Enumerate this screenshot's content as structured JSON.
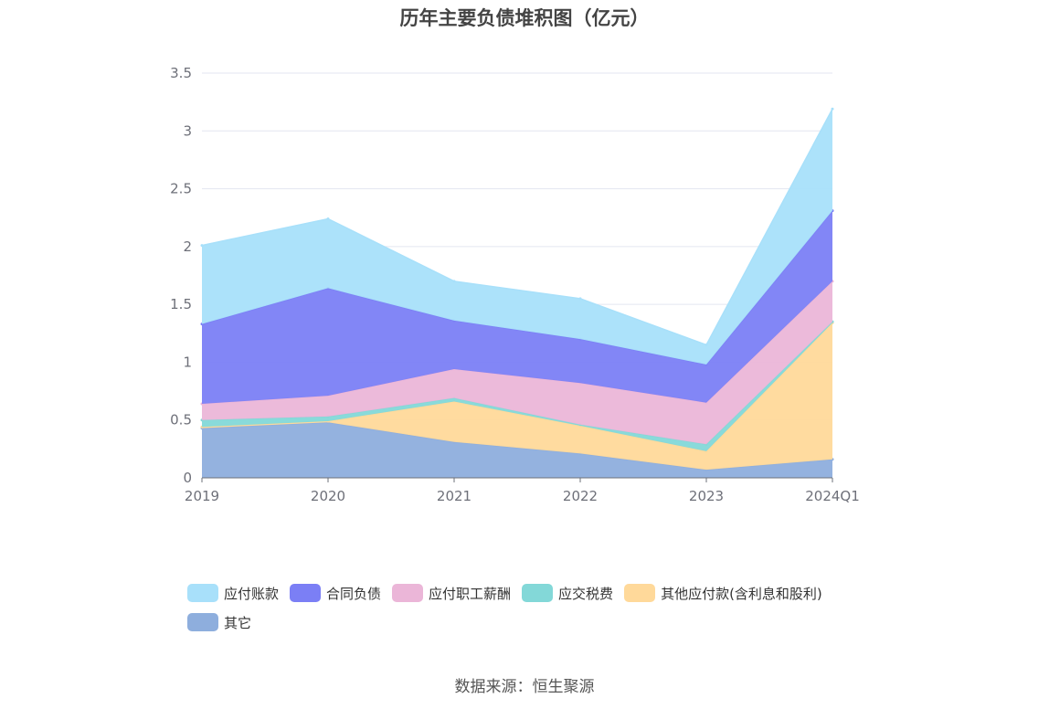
{
  "chart_data": {
    "type": "area",
    "title": "历年主要负债堆积图（亿元）",
    "stacked": true,
    "categories": [
      "2019",
      "2020",
      "2021",
      "2022",
      "2023",
      "2024Q1"
    ],
    "ylim": [
      0,
      3.5
    ],
    "yticks": [
      "0",
      "0.5",
      "1",
      "1.5",
      "2",
      "2.5",
      "3",
      "3.5"
    ],
    "grid": true,
    "legend_position": "bottom",
    "series": [
      {
        "name": "其它",
        "color": "#8eaedd",
        "values": [
          0.43,
          0.48,
          0.31,
          0.21,
          0.07,
          0.16
        ]
      },
      {
        "name": "其他应付款(含利息和股利)",
        "color": "#ffd99a",
        "values": [
          0.01,
          0.01,
          0.35,
          0.24,
          0.16,
          1.18
        ]
      },
      {
        "name": "应交税费",
        "color": "#83d8d8",
        "values": [
          0.06,
          0.04,
          0.03,
          0.01,
          0.06,
          0.01
        ]
      },
      {
        "name": "应付职工薪酬",
        "color": "#ebb6d8",
        "values": [
          0.14,
          0.18,
          0.25,
          0.36,
          0.36,
          0.35
        ]
      },
      {
        "name": "合同负债",
        "color": "#7b7ff5",
        "values": [
          0.69,
          0.93,
          0.42,
          0.38,
          0.33,
          0.61
        ]
      },
      {
        "name": "应付账款",
        "color": "#a8e0fa",
        "values": [
          0.68,
          0.6,
          0.34,
          0.35,
          0.17,
          0.88
        ]
      }
    ],
    "legend_order": [
      "应付账款",
      "合同负债",
      "应付职工薪酬",
      "应交税费",
      "其他应付款(含利息和股利)",
      "其它"
    ]
  },
  "source": "数据来源：恒生聚源"
}
